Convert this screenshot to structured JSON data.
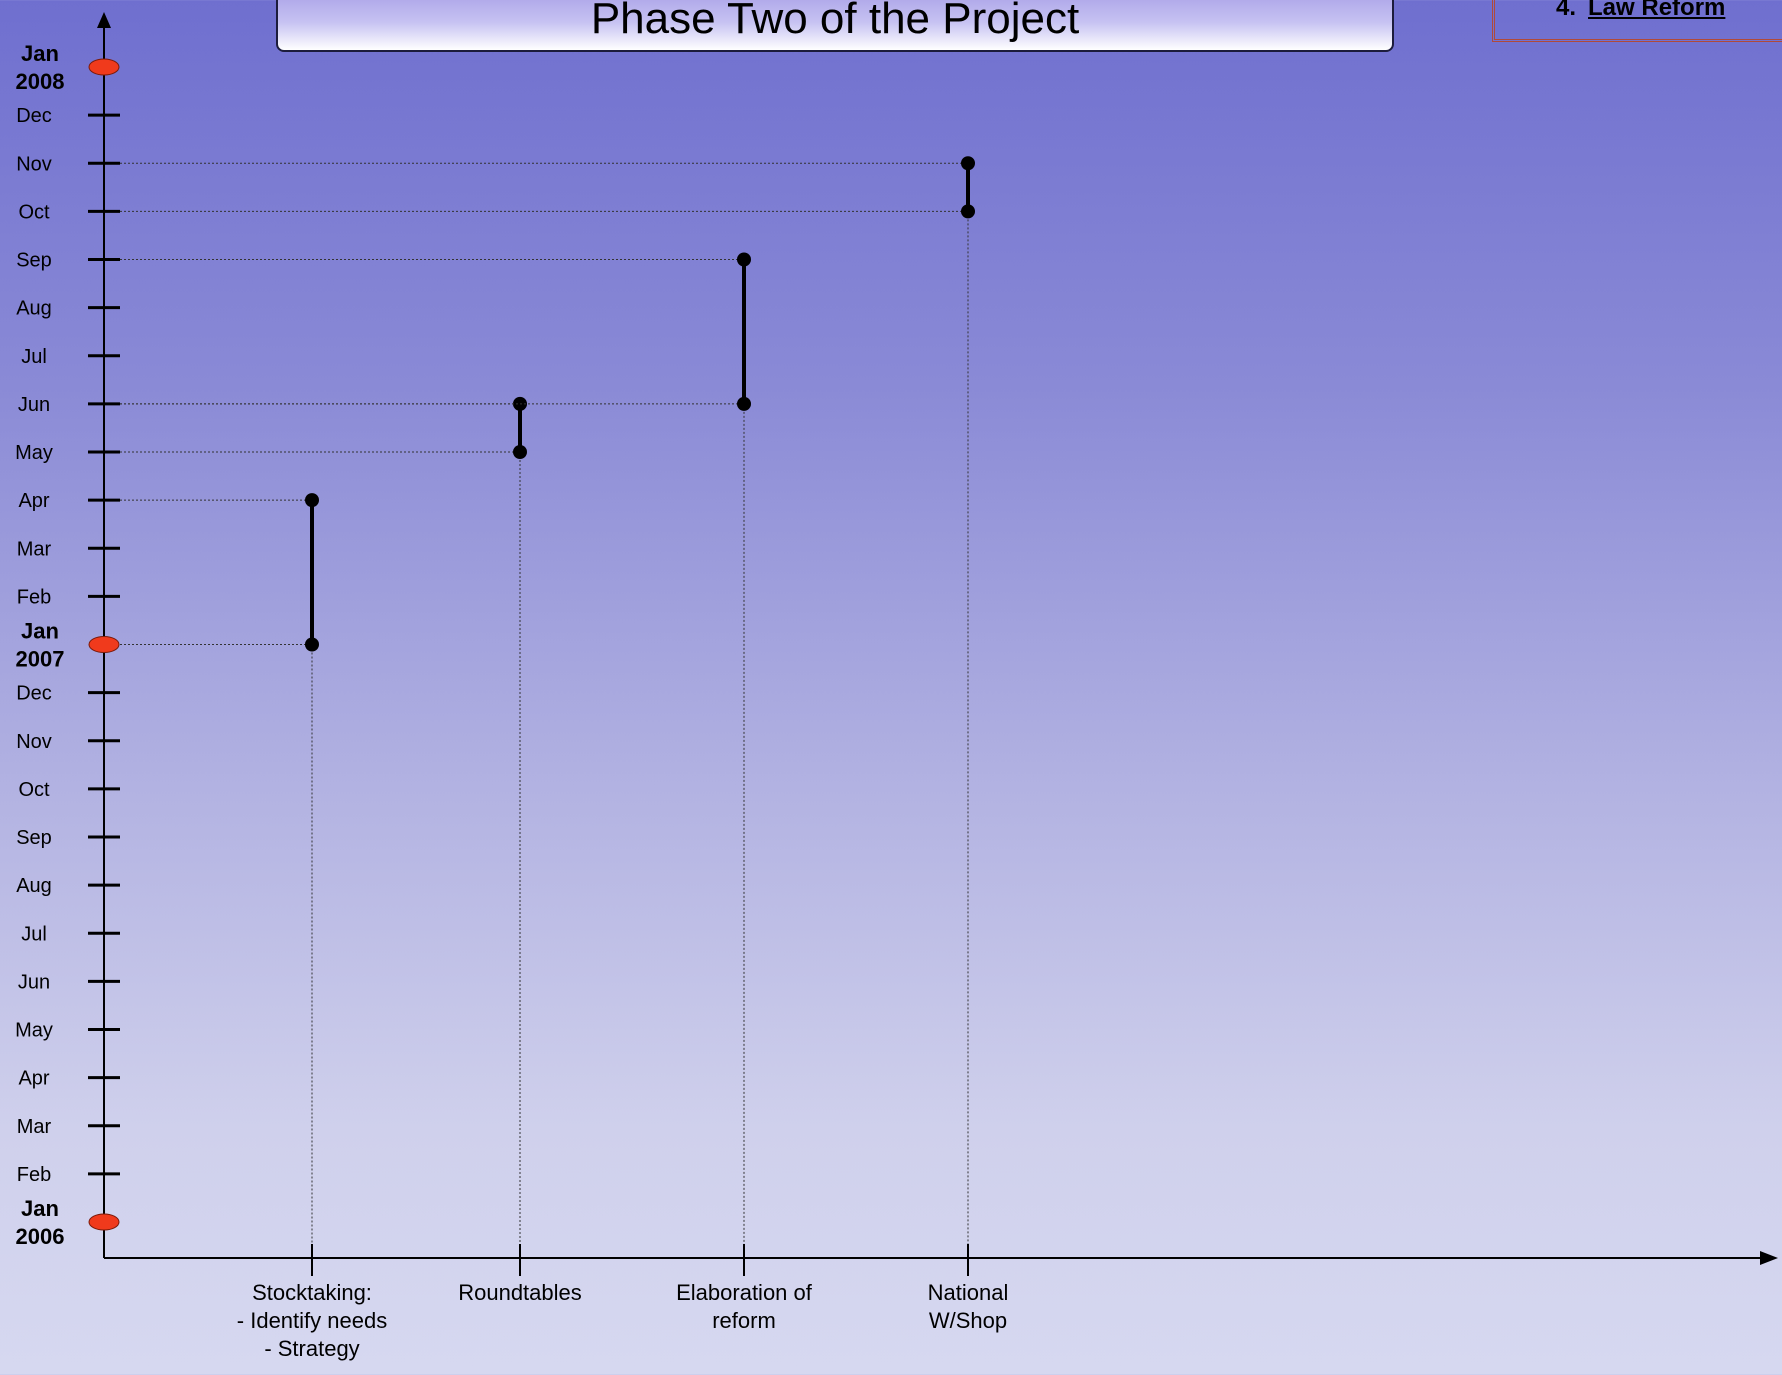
{
  "title": "Phase Two of the Project",
  "legend_item": "Law Reform",
  "colors": {
    "background_top": "#6f6fcf",
    "background_bottom": "#d6d8f0",
    "year_marker": "#f03a1c",
    "axis": "#000000"
  },
  "chart_data": {
    "type": "timeline",
    "title": "Phase Two of the Project",
    "y_axis": {
      "start": "2006-01",
      "end": "2008-01",
      "ticks": [
        {
          "text": "Jan 2006",
          "year": true
        },
        {
          "text": "Feb"
        },
        {
          "text": "Mar"
        },
        {
          "text": "Apr"
        },
        {
          "text": "May"
        },
        {
          "text": "Jun"
        },
        {
          "text": "Jul"
        },
        {
          "text": "Aug"
        },
        {
          "text": "Sep"
        },
        {
          "text": "Oct"
        },
        {
          "text": "Nov"
        },
        {
          "text": "Dec"
        },
        {
          "text": "Jan 2007",
          "year": true
        },
        {
          "text": "Feb"
        },
        {
          "text": "Mar"
        },
        {
          "text": "Apr"
        },
        {
          "text": "May"
        },
        {
          "text": "Jun"
        },
        {
          "text": "Jul"
        },
        {
          "text": "Aug"
        },
        {
          "text": "Sep"
        },
        {
          "text": "Oct"
        },
        {
          "text": "Nov"
        },
        {
          "text": "Dec"
        },
        {
          "text": "Jan 2008",
          "year": true
        }
      ]
    },
    "categories": [
      {
        "label": "Stocktaking:\n- Identify needs\n- Strategy",
        "start": "2007-01",
        "end": "2007-04"
      },
      {
        "label": "Roundtables",
        "start": "2007-05",
        "end": "2007-06"
      },
      {
        "label": "Elaboration of\nreform",
        "start": "2007-06",
        "end": "2007-09"
      },
      {
        "label": "National\nW/Shop",
        "start": "2007-10",
        "end": "2007-11"
      }
    ],
    "grid": false
  }
}
